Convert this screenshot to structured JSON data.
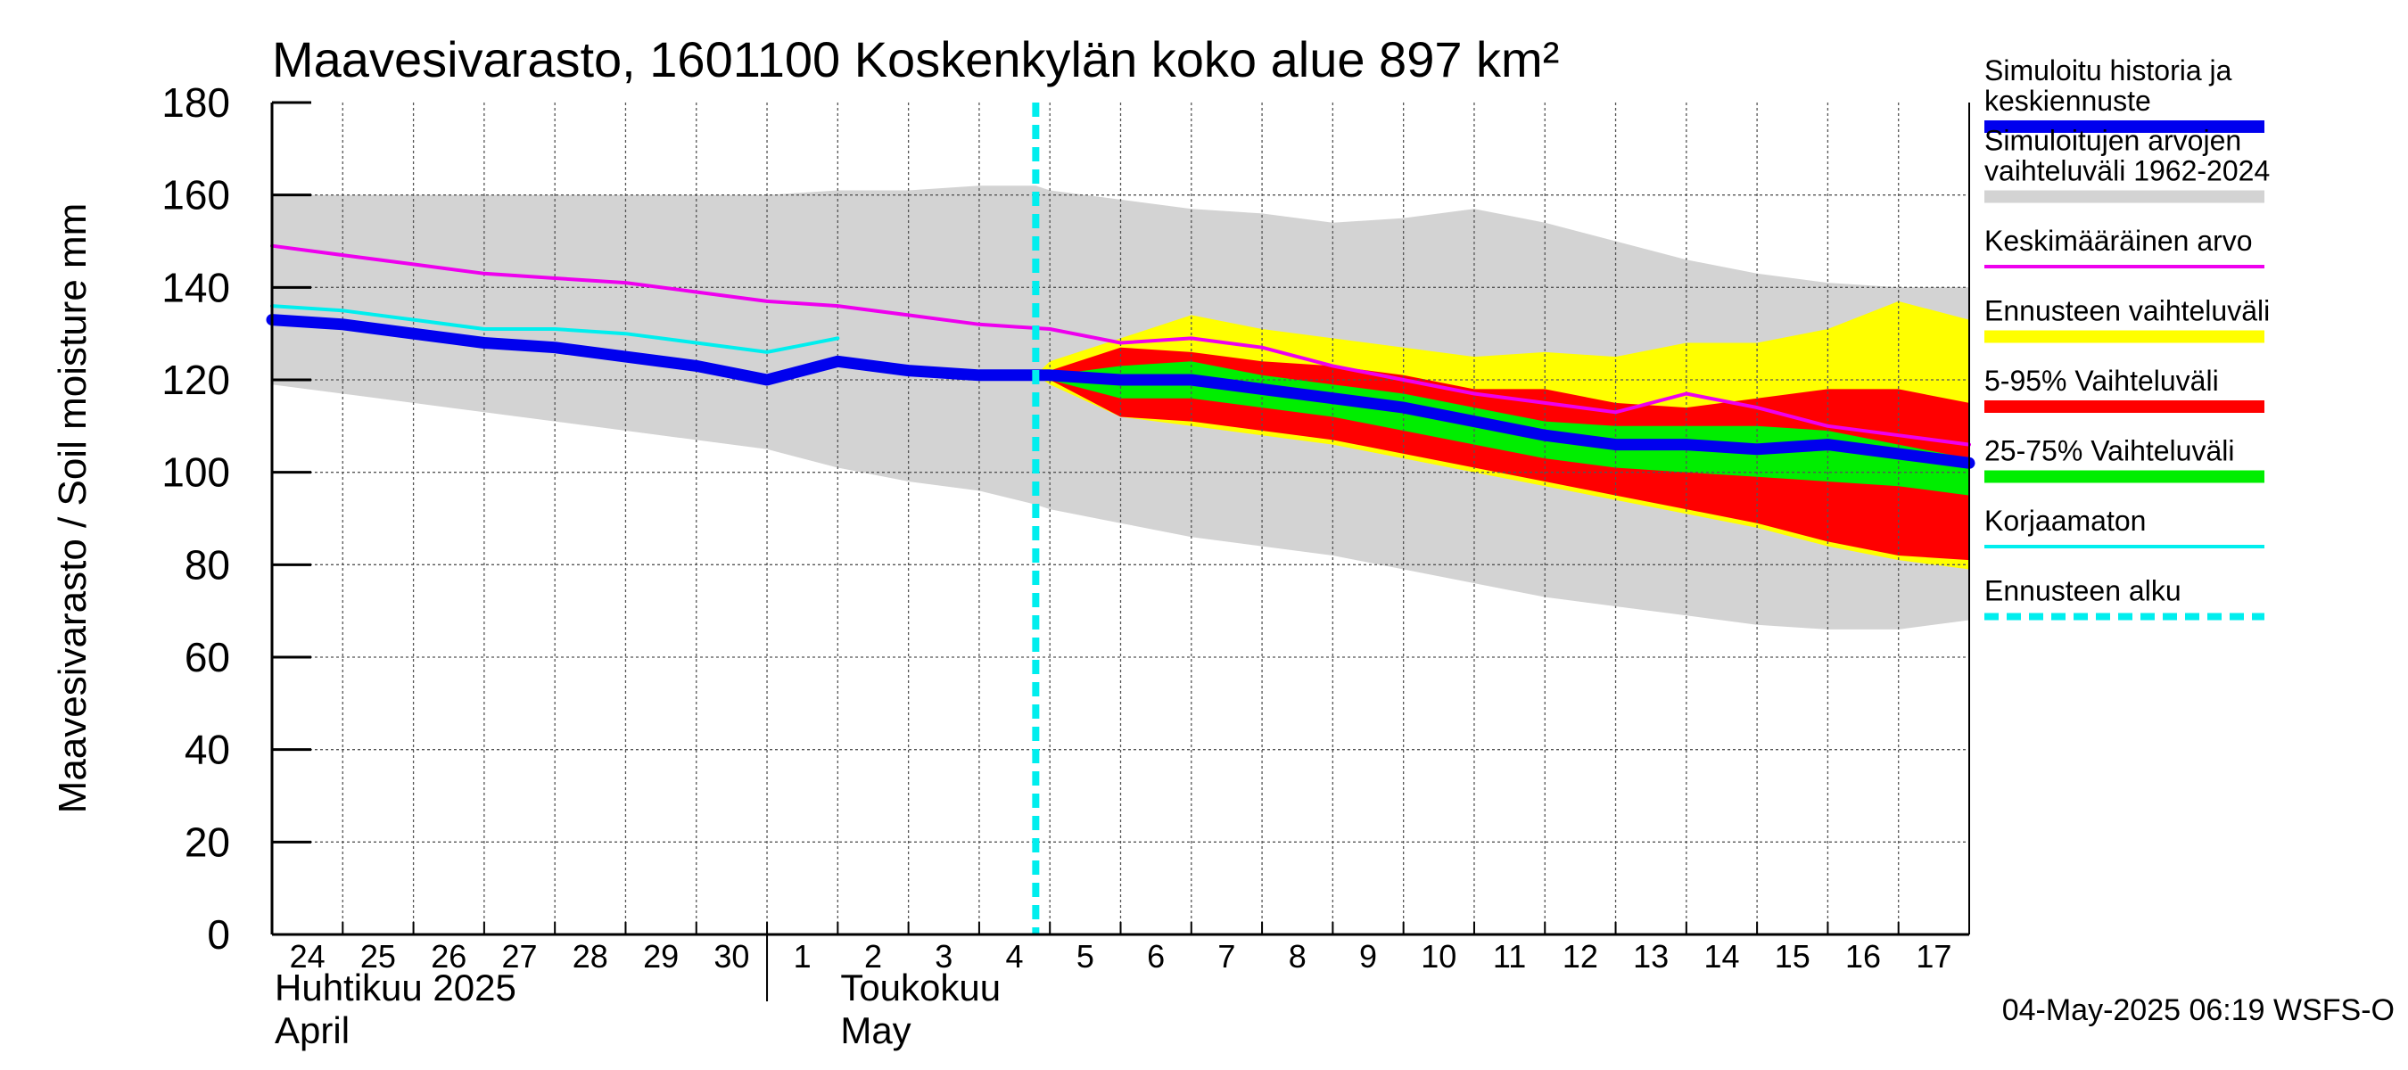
{
  "chart_data": {
    "type": "area",
    "title": "Maavesivarasto, 1601100 Koskenkylän koko alue 897 km²",
    "ylabel": "Maavesivarasto / Soil moisture   mm",
    "ylim": [
      0,
      180
    ],
    "yticks": [
      0,
      20,
      40,
      60,
      80,
      100,
      120,
      140,
      160,
      180
    ],
    "x_range": [
      0,
      24
    ],
    "grid": true,
    "legend_position": "right",
    "x_tick_labels": [
      "24",
      "25",
      "26",
      "27",
      "28",
      "29",
      "30",
      "1",
      "2",
      "3",
      "4",
      "5",
      "6",
      "7",
      "8",
      "9",
      "10",
      "11",
      "12",
      "13",
      "14",
      "15",
      "16",
      "17"
    ],
    "month_labels": [
      {
        "line1": "Huhtikuu  2025",
        "line2": "April"
      },
      {
        "line1": "Toukokuu",
        "line2": "May"
      }
    ],
    "month_boundary_x": 7,
    "forecast_start_x": 10.8,
    "timestamp": "04-May-2025 06:19 WSFS-O",
    "colors": {
      "history_range": "#d3d3d3",
      "forecast_range": "#ffff00",
      "p5_95": "#ff0000",
      "p25_75": "#00ee00",
      "simulated": "#0000ee",
      "mean": "#ee00ee",
      "uncorrected": "#00eeee",
      "forecast_start": "#00eeee"
    },
    "series": [
      {
        "name": "hist_range",
        "x": [
          0,
          1,
          2,
          3,
          4,
          5,
          6,
          7,
          8,
          9,
          10,
          10.8,
          11,
          12,
          13,
          14,
          15,
          16,
          17,
          18,
          19,
          20,
          21,
          22,
          23,
          24
        ],
        "upper": [
          160,
          160,
          160,
          160,
          160,
          160,
          160,
          160,
          161,
          161,
          162,
          162,
          161,
          159,
          157,
          156,
          154,
          155,
          157,
          154,
          150,
          146,
          143,
          141,
          140,
          140
        ],
        "lower": [
          119,
          117,
          115,
          113,
          111,
          109,
          107,
          105,
          101,
          98,
          96,
          93,
          92,
          89,
          86,
          84,
          82,
          79,
          76,
          73,
          71,
          69,
          67,
          66,
          66,
          68
        ]
      },
      {
        "name": "forecast_range",
        "x": [
          10.8,
          11,
          12,
          13,
          14,
          15,
          16,
          17,
          18,
          19,
          20,
          21,
          22,
          23,
          24
        ],
        "upper": [
          121,
          124,
          129,
          134,
          131,
          129,
          127,
          125,
          126,
          125,
          128,
          128,
          131,
          137,
          133
        ],
        "lower": [
          121,
          119,
          112,
          110,
          108,
          106,
          103,
          100,
          97,
          94,
          91,
          88,
          84,
          81,
          79
        ]
      },
      {
        "name": "p5_95",
        "x": [
          10.8,
          11,
          12,
          13,
          14,
          15,
          16,
          17,
          18,
          19,
          20,
          21,
          22,
          23,
          24
        ],
        "upper": [
          121,
          122,
          127,
          126,
          124,
          123,
          121,
          118,
          118,
          115,
          114,
          116,
          118,
          118,
          115
        ],
        "lower": [
          121,
          120,
          112,
          111,
          109,
          107,
          104,
          101,
          98,
          95,
          92,
          89,
          85,
          82,
          81
        ]
      },
      {
        "name": "p25_75",
        "x": [
          10.8,
          11,
          12,
          13,
          14,
          15,
          16,
          17,
          18,
          19,
          20,
          21,
          22,
          23,
          24
        ],
        "upper": [
          121,
          121,
          123,
          124,
          121,
          119,
          117,
          114,
          111,
          110,
          110,
          110,
          109,
          106,
          103
        ],
        "lower": [
          121,
          120,
          116,
          116,
          114,
          112,
          109,
          106,
          103,
          101,
          100,
          99,
          98,
          97,
          95
        ]
      },
      {
        "name": "Keskimääräinen arvo",
        "x": [
          0,
          1,
          2,
          3,
          4,
          5,
          6,
          7,
          8,
          9,
          10,
          11,
          12,
          13,
          14,
          15,
          16,
          17,
          18,
          19,
          20,
          21,
          22,
          23,
          24
        ],
        "values": [
          149,
          147,
          145,
          143,
          142,
          141,
          139,
          137,
          136,
          134,
          132,
          131,
          128,
          129,
          127,
          123,
          120,
          117,
          115,
          113,
          117,
          114,
          110,
          108,
          106
        ]
      },
      {
        "name": "Korjaamaton",
        "x": [
          0,
          1,
          2,
          3,
          4,
          5,
          6,
          7,
          8
        ],
        "values": [
          136,
          135,
          133,
          131,
          131,
          130,
          128,
          126,
          129
        ]
      },
      {
        "name": "Simuloitu historia ja keskiennuste",
        "x": [
          0,
          1,
          2,
          3,
          4,
          5,
          6,
          7,
          8,
          9,
          10,
          10.8,
          11,
          12,
          13,
          14,
          15,
          16,
          17,
          18,
          19,
          20,
          21,
          22,
          23,
          24
        ],
        "values": [
          133,
          132,
          130,
          128,
          127,
          125,
          123,
          120,
          124,
          122,
          121,
          121,
          121,
          120,
          120,
          118,
          116,
          114,
          111,
          108,
          106,
          106,
          105,
          106,
          104,
          102
        ]
      }
    ],
    "legend": [
      {
        "label": "Simuloitu historia ja keskiennuste",
        "color": "#0000ee",
        "style": "thick"
      },
      {
        "label": "Simuloitujen arvojen vaihteluväli 1962-2024",
        "color": "#d3d3d3",
        "style": "thick"
      },
      {
        "label": "Keskimääräinen arvo",
        "color": "#ee00ee",
        "style": "thin"
      },
      {
        "label": "Ennusteen vaihteluväli",
        "color": "#ffff00",
        "style": "thick"
      },
      {
        "label": "5-95% Vaihteluväli",
        "color": "#ff0000",
        "style": "thick"
      },
      {
        "label": "25-75% Vaihteluväli",
        "color": "#00ee00",
        "style": "thick"
      },
      {
        "label": "Korjaamaton",
        "color": "#00eeee",
        "style": "thin"
      },
      {
        "label": "Ennusteen alku",
        "color": "#00eeee",
        "style": "dashed"
      }
    ]
  }
}
